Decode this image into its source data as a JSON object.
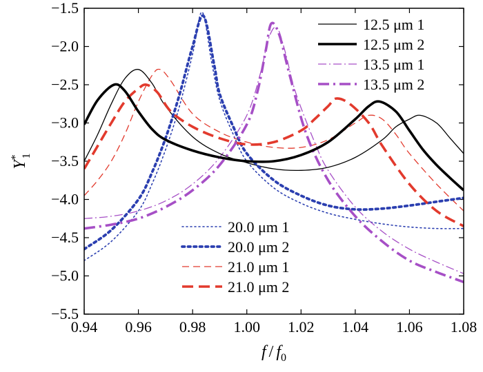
{
  "chart_data": {
    "type": "line",
    "xlabel": "f / f0",
    "ylabel": "Y*1",
    "xlim": [
      0.94,
      1.08
    ],
    "ylim": [
      -5.5,
      -1.5
    ],
    "xticks": [
      "0.94",
      "0.96",
      "0.98",
      "1.00",
      "1.02",
      "1.04",
      "1.06",
      "1.08"
    ],
    "yticks": [
      "-1.5",
      "-2.0",
      "-2.5",
      "-3.0",
      "-3.5",
      "-4.0",
      "-4.5",
      "-5.0",
      "-5.5"
    ],
    "grid": false,
    "legend": [
      {
        "position": "top-right",
        "entries": [
          0,
          1,
          2,
          3
        ]
      },
      {
        "position": "bottom-center",
        "entries": [
          4,
          5,
          6,
          7
        ]
      }
    ],
    "series": [
      {
        "name": "12.5 μm 1",
        "color": "#000000",
        "style": "thin-solid",
        "x": [
          0.94,
          0.945,
          0.95,
          0.955,
          0.96,
          0.965,
          0.97,
          0.98,
          0.99,
          1.0,
          1.01,
          1.02,
          1.03,
          1.04,
          1.05,
          1.055,
          1.06,
          1.064,
          1.07,
          1.075,
          1.08
        ],
        "y": [
          -3.5,
          -3.15,
          -2.75,
          -2.42,
          -2.3,
          -2.48,
          -2.78,
          -3.18,
          -3.4,
          -3.52,
          -3.6,
          -3.62,
          -3.58,
          -3.45,
          -3.22,
          -3.05,
          -2.95,
          -2.9,
          -3.0,
          -3.2,
          -3.4
        ]
      },
      {
        "name": "12.5 μm 2",
        "color": "#000000",
        "style": "thick-solid",
        "x": [
          0.94,
          0.945,
          0.951,
          0.955,
          0.96,
          0.965,
          0.97,
          0.98,
          0.99,
          1.0,
          1.01,
          1.02,
          1.03,
          1.04,
          1.045,
          1.049,
          1.055,
          1.06,
          1.065,
          1.07,
          1.075,
          1.08
        ],
        "y": [
          -3.02,
          -2.7,
          -2.5,
          -2.58,
          -2.85,
          -3.08,
          -3.22,
          -3.36,
          -3.45,
          -3.5,
          -3.5,
          -3.42,
          -3.25,
          -2.95,
          -2.78,
          -2.72,
          -2.85,
          -3.1,
          -3.35,
          -3.55,
          -3.72,
          -3.88
        ]
      },
      {
        "name": "13.5 μm 1",
        "color": "#a64fc6",
        "style": "thin-dashdot",
        "x": [
          0.94,
          0.95,
          0.96,
          0.97,
          0.98,
          0.99,
          1.0,
          1.005,
          1.008,
          1.011,
          1.014,
          1.018,
          1.025,
          1.03,
          1.04,
          1.05,
          1.06,
          1.07,
          1.08
        ],
        "y": [
          -4.25,
          -4.22,
          -4.15,
          -4.02,
          -3.8,
          -3.45,
          -2.9,
          -2.35,
          -1.9,
          -1.75,
          -2.05,
          -2.6,
          -3.25,
          -3.62,
          -4.1,
          -4.42,
          -4.65,
          -4.82,
          -4.97
        ]
      },
      {
        "name": "13.5 μm 2",
        "color": "#a64fc6",
        "style": "thick-dashdot",
        "x": [
          0.94,
          0.95,
          0.96,
          0.97,
          0.98,
          0.99,
          1.0,
          1.004,
          1.007,
          1.009,
          1.012,
          1.016,
          1.022,
          1.03,
          1.04,
          1.05,
          1.06,
          1.07,
          1.08
        ],
        "y": [
          -4.38,
          -4.33,
          -4.25,
          -4.1,
          -3.88,
          -3.55,
          -3.02,
          -2.58,
          -2.05,
          -1.7,
          -1.85,
          -2.4,
          -3.15,
          -3.75,
          -4.22,
          -4.55,
          -4.8,
          -4.95,
          -5.08
        ]
      },
      {
        "name": "20.0 μm 1",
        "color": "#2b3fb0",
        "style": "thin-dotted",
        "x": [
          0.94,
          0.95,
          0.96,
          0.965,
          0.97,
          0.975,
          0.98,
          0.9835,
          0.987,
          0.99,
          0.995,
          1.0,
          1.01,
          1.02,
          1.03,
          1.04,
          1.05,
          1.06,
          1.07,
          1.08
        ],
        "y": [
          -4.8,
          -4.55,
          -4.15,
          -3.8,
          -3.35,
          -2.8,
          -2.1,
          -1.55,
          -2.2,
          -2.7,
          -3.15,
          -3.5,
          -3.85,
          -4.05,
          -4.18,
          -4.26,
          -4.32,
          -4.36,
          -4.38,
          -4.38
        ]
      },
      {
        "name": "20.0 μm 2",
        "color": "#2b3fb0",
        "style": "thick-dotted",
        "x": [
          0.94,
          0.95,
          0.96,
          0.965,
          0.97,
          0.975,
          0.98,
          0.984,
          0.988,
          0.99,
          0.995,
          1.0,
          1.01,
          1.02,
          1.03,
          1.04,
          1.05,
          1.06,
          1.07,
          1.08
        ],
        "y": [
          -4.65,
          -4.4,
          -4.0,
          -3.65,
          -3.2,
          -2.65,
          -2.0,
          -1.6,
          -2.25,
          -2.62,
          -3.05,
          -3.4,
          -3.75,
          -3.95,
          -4.08,
          -4.13,
          -4.12,
          -4.08,
          -4.03,
          -3.98
        ]
      },
      {
        "name": "21.0 μm 1",
        "color": "#e23a2d",
        "style": "thin-dashed",
        "x": [
          0.94,
          0.945,
          0.95,
          0.955,
          0.96,
          0.965,
          0.968,
          0.972,
          0.98,
          0.99,
          1.0,
          1.01,
          1.02,
          1.03,
          1.04,
          1.045,
          1.05,
          1.055,
          1.06,
          1.07,
          1.08
        ],
        "y": [
          -3.95,
          -3.75,
          -3.5,
          -3.15,
          -2.72,
          -2.38,
          -2.3,
          -2.45,
          -2.88,
          -3.12,
          -3.25,
          -3.32,
          -3.32,
          -3.22,
          -3.0,
          -2.9,
          -2.95,
          -3.15,
          -3.4,
          -3.8,
          -4.15
        ]
      },
      {
        "name": "21.0 μm 2",
        "color": "#e23a2d",
        "style": "thick-dashed",
        "x": [
          0.94,
          0.945,
          0.95,
          0.955,
          0.96,
          0.963,
          0.967,
          0.972,
          0.98,
          0.99,
          1.0,
          1.01,
          1.02,
          1.025,
          1.03,
          1.033,
          1.038,
          1.045,
          1.05,
          1.06,
          1.07,
          1.08
        ],
        "y": [
          -3.6,
          -3.3,
          -3.0,
          -2.72,
          -2.55,
          -2.5,
          -2.6,
          -2.85,
          -3.05,
          -3.2,
          -3.28,
          -3.25,
          -3.1,
          -2.95,
          -2.78,
          -2.68,
          -2.75,
          -3.0,
          -3.3,
          -3.8,
          -4.15,
          -4.35
        ]
      }
    ]
  }
}
